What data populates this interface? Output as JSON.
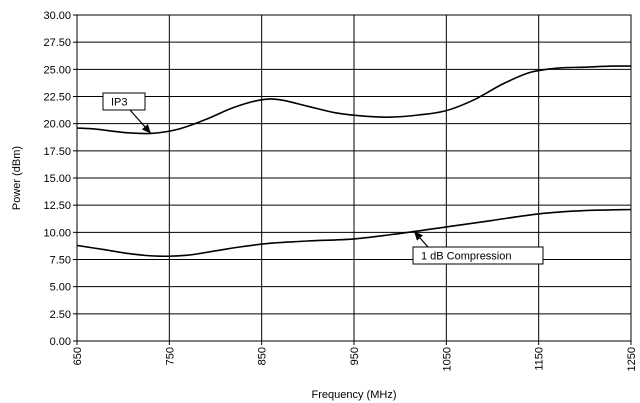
{
  "chart_data": {
    "type": "line",
    "title": "",
    "xlabel": "Frequency (MHz)",
    "ylabel": "Power (dBm)",
    "xlim": [
      650,
      1250
    ],
    "ylim": [
      0,
      30
    ],
    "grid": true,
    "x_ticks": [
      650,
      750,
      850,
      950,
      1050,
      1150,
      1250
    ],
    "x_tick_labels": [
      "650",
      "750",
      "850",
      "950",
      "1050",
      "1150",
      "1250"
    ],
    "y_ticks": [
      0,
      2.5,
      5,
      7.5,
      10,
      12.5,
      15,
      17.5,
      20,
      22.5,
      25,
      27.5,
      30
    ],
    "y_tick_labels": [
      "0.00",
      "2.50",
      "5.00",
      "7.50",
      "10.00",
      "12.50",
      "15.00",
      "17.50",
      "20.00",
      "22.50",
      "25.00",
      "27.50",
      "30.00"
    ],
    "series": [
      {
        "name": "IP3",
        "x": [
          650,
          670,
          700,
          730,
          760,
          790,
          820,
          850,
          870,
          900,
          930,
          960,
          990,
          1020,
          1050,
          1080,
          1110,
          1140,
          1170,
          1200,
          1230,
          1250
        ],
        "y": [
          19.6,
          19.5,
          19.2,
          19.1,
          19.5,
          20.4,
          21.5,
          22.2,
          22.2,
          21.6,
          21.0,
          20.7,
          20.6,
          20.8,
          21.2,
          22.2,
          23.6,
          24.7,
          25.1,
          25.2,
          25.3,
          25.3
        ]
      },
      {
        "name": "1 dB Compression",
        "x": [
          650,
          680,
          710,
          740,
          770,
          800,
          830,
          860,
          900,
          950,
          1000,
          1050,
          1100,
          1150,
          1200,
          1250
        ],
        "y": [
          8.8,
          8.4,
          8.0,
          7.8,
          7.9,
          8.3,
          8.7,
          9.0,
          9.2,
          9.4,
          9.9,
          10.5,
          11.1,
          11.7,
          12.0,
          12.1
        ]
      }
    ],
    "annotations": [
      {
        "text": "IP3",
        "series": "IP3",
        "arrow_x": 730,
        "arrow_y": 19.1
      },
      {
        "text": "1 dB Compression",
        "series": "1 dB Compression",
        "arrow_x": 1015,
        "arrow_y": 10.1
      }
    ]
  }
}
